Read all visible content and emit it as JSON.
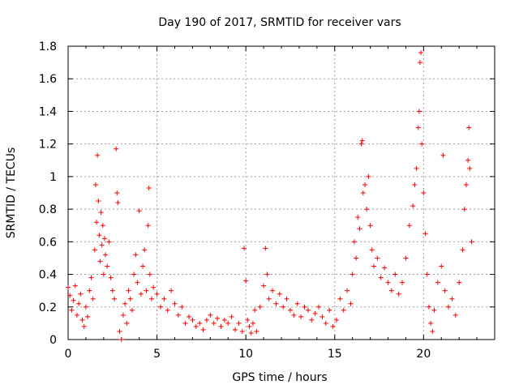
{
  "chart_data": {
    "type": "scatter",
    "title": "Day 190 of 2017, SRMTID for receiver vars",
    "xlabel": "GPS time / hours",
    "ylabel": "SRMTID / TECUs",
    "xlim": [
      0,
      24
    ],
    "ylim": [
      0,
      1.8
    ],
    "xticks": [
      0,
      5,
      10,
      15,
      20
    ],
    "xtick_labels": [
      "0",
      "5",
      "10",
      "15",
      "20"
    ],
    "yticks": [
      0,
      0.2,
      0.4,
      0.6,
      0.8,
      1,
      1.2,
      1.4,
      1.6,
      1.8
    ],
    "ytick_labels": [
      "0",
      "0.2",
      "0.4",
      "0.6",
      "0.8",
      "1",
      "1.2",
      "1.4",
      "1.6",
      "1.8"
    ],
    "grid": true,
    "marker": "+",
    "color": "#ff0000",
    "series": [
      {
        "name": "receiver vars",
        "points": [
          [
            0.0,
            0.32
          ],
          [
            0.1,
            0.27
          ],
          [
            0.2,
            0.18
          ],
          [
            0.3,
            0.24
          ],
          [
            0.4,
            0.33
          ],
          [
            0.5,
            0.15
          ],
          [
            0.6,
            0.22
          ],
          [
            0.7,
            0.28
          ],
          [
            0.8,
            0.12
          ],
          [
            0.9,
            0.08
          ],
          [
            1.0,
            0.2
          ],
          [
            1.1,
            0.14
          ],
          [
            1.2,
            0.3
          ],
          [
            1.3,
            0.38
          ],
          [
            1.4,
            0.25
          ],
          [
            1.5,
            0.55
          ],
          [
            1.55,
            0.95
          ],
          [
            1.6,
            0.72
          ],
          [
            1.65,
            1.13
          ],
          [
            1.7,
            0.85
          ],
          [
            1.75,
            0.64
          ],
          [
            1.8,
            0.48
          ],
          [
            1.85,
            0.78
          ],
          [
            1.9,
            0.58
          ],
          [
            1.95,
            0.7
          ],
          [
            2.0,
            0.4
          ],
          [
            2.05,
            0.62
          ],
          [
            2.1,
            0.52
          ],
          [
            2.2,
            0.45
          ],
          [
            2.3,
            0.6
          ],
          [
            2.4,
            0.38
          ],
          [
            2.5,
            0.3
          ],
          [
            2.6,
            0.25
          ],
          [
            2.7,
            1.17
          ],
          [
            2.75,
            0.9
          ],
          [
            2.8,
            0.84
          ],
          [
            2.9,
            0.05
          ],
          [
            3.0,
            0.0
          ],
          [
            3.1,
            0.15
          ],
          [
            3.2,
            0.22
          ],
          [
            3.3,
            0.1
          ],
          [
            3.4,
            0.3
          ],
          [
            3.5,
            0.25
          ],
          [
            3.6,
            0.18
          ],
          [
            3.7,
            0.4
          ],
          [
            3.8,
            0.52
          ],
          [
            3.9,
            0.35
          ],
          [
            4.0,
            0.79
          ],
          [
            4.1,
            0.28
          ],
          [
            4.2,
            0.45
          ],
          [
            4.3,
            0.55
          ],
          [
            4.4,
            0.3
          ],
          [
            4.5,
            0.7
          ],
          [
            4.55,
            0.93
          ],
          [
            4.6,
            0.4
          ],
          [
            4.7,
            0.25
          ],
          [
            4.8,
            0.32
          ],
          [
            5.0,
            0.28
          ],
          [
            5.2,
            0.2
          ],
          [
            5.4,
            0.25
          ],
          [
            5.6,
            0.18
          ],
          [
            5.8,
            0.3
          ],
          [
            6.0,
            0.22
          ],
          [
            6.2,
            0.15
          ],
          [
            6.4,
            0.2
          ],
          [
            6.6,
            0.1
          ],
          [
            6.8,
            0.14
          ],
          [
            7.0,
            0.12
          ],
          [
            7.2,
            0.08
          ],
          [
            7.4,
            0.1
          ],
          [
            7.6,
            0.06
          ],
          [
            7.8,
            0.12
          ],
          [
            8.0,
            0.15
          ],
          [
            8.2,
            0.1
          ],
          [
            8.4,
            0.13
          ],
          [
            8.6,
            0.08
          ],
          [
            8.8,
            0.12
          ],
          [
            9.0,
            0.1
          ],
          [
            9.2,
            0.14
          ],
          [
            9.4,
            0.06
          ],
          [
            9.6,
            0.1
          ],
          [
            9.8,
            0.05
          ],
          [
            9.9,
            0.56
          ],
          [
            10.0,
            0.36
          ],
          [
            10.1,
            0.12
          ],
          [
            10.2,
            0.08
          ],
          [
            10.3,
            0.04
          ],
          [
            10.4,
            0.1
          ],
          [
            10.5,
            0.18
          ],
          [
            10.6,
            0.05
          ],
          [
            10.8,
            0.2
          ],
          [
            11.0,
            0.33
          ],
          [
            11.1,
            0.56
          ],
          [
            11.2,
            0.4
          ],
          [
            11.3,
            0.25
          ],
          [
            11.5,
            0.3
          ],
          [
            11.7,
            0.22
          ],
          [
            11.9,
            0.28
          ],
          [
            12.1,
            0.2
          ],
          [
            12.3,
            0.25
          ],
          [
            12.5,
            0.18
          ],
          [
            12.7,
            0.15
          ],
          [
            12.9,
            0.22
          ],
          [
            13.1,
            0.14
          ],
          [
            13.3,
            0.2
          ],
          [
            13.5,
            0.18
          ],
          [
            13.7,
            0.12
          ],
          [
            13.9,
            0.16
          ],
          [
            14.1,
            0.2
          ],
          [
            14.3,
            0.14
          ],
          [
            14.5,
            0.1
          ],
          [
            14.7,
            0.18
          ],
          [
            14.9,
            0.08
          ],
          [
            15.1,
            0.12
          ],
          [
            15.3,
            0.25
          ],
          [
            15.5,
            0.18
          ],
          [
            15.7,
            0.3
          ],
          [
            15.9,
            0.22
          ],
          [
            16.0,
            0.4
          ],
          [
            16.1,
            0.6
          ],
          [
            16.2,
            0.5
          ],
          [
            16.3,
            0.75
          ],
          [
            16.4,
            0.68
          ],
          [
            16.5,
            1.2
          ],
          [
            16.55,
            1.22
          ],
          [
            16.6,
            0.9
          ],
          [
            16.7,
            0.95
          ],
          [
            16.8,
            0.8
          ],
          [
            16.9,
            1.0
          ],
          [
            17.0,
            0.7
          ],
          [
            17.1,
            0.55
          ],
          [
            17.2,
            0.45
          ],
          [
            17.4,
            0.5
          ],
          [
            17.6,
            0.38
          ],
          [
            17.8,
            0.44
          ],
          [
            18.0,
            0.35
          ],
          [
            18.2,
            0.3
          ],
          [
            18.4,
            0.4
          ],
          [
            18.6,
            0.28
          ],
          [
            18.8,
            0.35
          ],
          [
            19.0,
            0.5
          ],
          [
            19.2,
            0.7
          ],
          [
            19.4,
            0.82
          ],
          [
            19.5,
            0.95
          ],
          [
            19.6,
            1.05
          ],
          [
            19.7,
            1.3
          ],
          [
            19.75,
            1.4
          ],
          [
            19.8,
            1.7
          ],
          [
            19.85,
            1.76
          ],
          [
            19.9,
            1.2
          ],
          [
            20.0,
            0.9
          ],
          [
            20.1,
            0.65
          ],
          [
            20.2,
            0.4
          ],
          [
            20.3,
            0.2
          ],
          [
            20.4,
            0.1
          ],
          [
            20.5,
            0.05
          ],
          [
            20.6,
            0.18
          ],
          [
            20.8,
            0.35
          ],
          [
            21.0,
            0.45
          ],
          [
            21.1,
            1.13
          ],
          [
            21.2,
            0.3
          ],
          [
            21.4,
            0.2
          ],
          [
            21.6,
            0.25
          ],
          [
            21.8,
            0.15
          ],
          [
            22.0,
            0.35
          ],
          [
            22.2,
            0.55
          ],
          [
            22.3,
            0.8
          ],
          [
            22.4,
            0.95
          ],
          [
            22.5,
            1.1
          ],
          [
            22.55,
            1.3
          ],
          [
            22.6,
            1.05
          ],
          [
            22.7,
            0.6
          ]
        ]
      }
    ]
  }
}
